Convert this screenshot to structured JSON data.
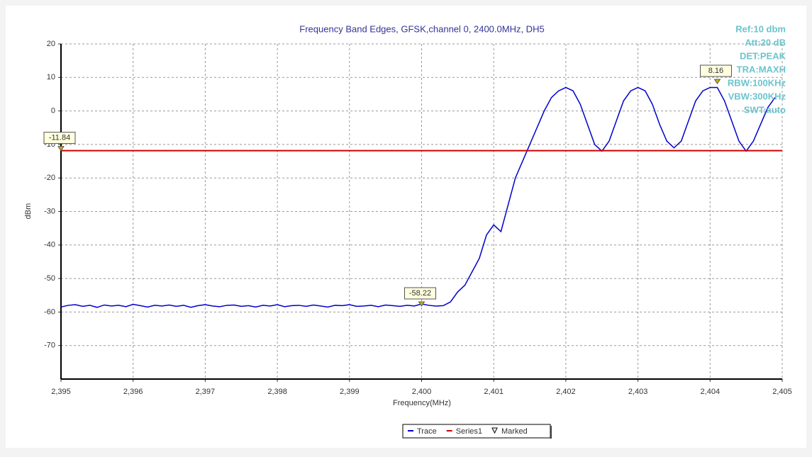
{
  "chart_data": {
    "type": "line",
    "title": "Frequency Band Edges, GFSK,channel 0, 2400.0MHz, DH5",
    "x_label": "Frequency(MHz)",
    "y_label": "dBm",
    "xlim": [
      2395,
      2405
    ],
    "xticks": [
      {
        "value": 2395,
        "label": "2,395"
      },
      {
        "value": 2396,
        "label": "2,396"
      },
      {
        "value": 2397,
        "label": "2,397"
      },
      {
        "value": 2398,
        "label": "2,398"
      },
      {
        "value": 2399,
        "label": "2,399"
      },
      {
        "value": 2400,
        "label": "2,400"
      },
      {
        "value": 2401,
        "label": "2,401"
      },
      {
        "value": 2402,
        "label": "2,402"
      },
      {
        "value": 2403,
        "label": "2,403"
      },
      {
        "value": 2404,
        "label": "2,404"
      },
      {
        "value": 2405,
        "label": "2,405"
      }
    ],
    "ylim": [
      -80,
      20
    ],
    "yticks": [
      20,
      10,
      0,
      -10,
      -20,
      -30,
      -40,
      -50,
      -60,
      -70
    ],
    "grid": true,
    "annotations": [
      "Ref:10 dbm",
      "Att:20 dB",
      "DET:PEAK",
      "TRA:MAXH",
      "RBW:100KHz",
      "VBW:300KHz",
      "SWT:auto"
    ],
    "series": [
      {
        "name": "Trace",
        "color": "#0000cc",
        "x": [
          2395,
          2395.1,
          2395.2,
          2395.3,
          2395.4,
          2395.5,
          2395.6,
          2395.7,
          2395.8,
          2395.9,
          2396,
          2396.1,
          2396.2,
          2396.3,
          2396.4,
          2396.5,
          2396.6,
          2396.7,
          2396.8,
          2396.9,
          2397,
          2397.1,
          2397.2,
          2397.3,
          2397.4,
          2397.5,
          2397.6,
          2397.7,
          2397.8,
          2397.9,
          2398,
          2398.1,
          2398.2,
          2398.3,
          2398.4,
          2398.5,
          2398.6,
          2398.7,
          2398.8,
          2398.9,
          2399,
          2399.1,
          2399.2,
          2399.3,
          2399.4,
          2399.5,
          2399.6,
          2399.7,
          2399.8,
          2399.9,
          2400,
          2400.1,
          2400.2,
          2400.3,
          2400.4,
          2400.5,
          2400.6,
          2400.7,
          2400.8,
          2400.9,
          2401,
          2401.1,
          2401.2,
          2401.3,
          2401.4,
          2401.5,
          2401.6,
          2401.7,
          2401.8,
          2401.9,
          2402,
          2402.1,
          2402.2,
          2402.3,
          2402.4,
          2402.5,
          2402.6,
          2402.7,
          2402.8,
          2402.9,
          2403,
          2403.1,
          2403.2,
          2403.3,
          2403.4,
          2403.5,
          2403.6,
          2403.7,
          2403.8,
          2403.9,
          2404,
          2404.1,
          2404.2,
          2404.3,
          2404.4,
          2404.5,
          2404.6,
          2404.7,
          2404.8,
          2404.9
        ],
        "values": [
          -58.5,
          -58,
          -57.8,
          -58.3,
          -58,
          -58.6,
          -57.9,
          -58.2,
          -58,
          -58.4,
          -57.7,
          -58.1,
          -58.5,
          -58,
          -58.2,
          -57.9,
          -58.3,
          -58,
          -58.6,
          -58.1,
          -57.8,
          -58.2,
          -58.4,
          -58,
          -57.9,
          -58.3,
          -58.1,
          -58.5,
          -58,
          -58.2,
          -57.8,
          -58.4,
          -58.1,
          -58,
          -58.3,
          -57.9,
          -58.2,
          -58.5,
          -58,
          -58.1,
          -57.8,
          -58.3,
          -58.2,
          -58,
          -58.4,
          -57.9,
          -58.1,
          -58.3,
          -58,
          -58.2,
          -57.6,
          -58,
          -58.22,
          -58.1,
          -57,
          -54,
          -52,
          -48,
          -44,
          -37,
          -34,
          -36,
          -28,
          -20,
          -15,
          -10,
          -5,
          0,
          4,
          6,
          7,
          6,
          2,
          -4,
          -10,
          -12,
          -9,
          -3,
          3,
          6,
          7,
          6,
          2,
          -4,
          -9,
          -11,
          -9,
          -3,
          3,
          6,
          7,
          7,
          3,
          -3,
          -9,
          -12,
          -9,
          -4,
          1,
          4
        ]
      },
      {
        "name": "Series1",
        "color": "#cc0000",
        "x": [
          2395,
          2405
        ],
        "values": [
          -11.84,
          -11.84
        ]
      },
      {
        "name": "Marked",
        "color": "#c8b400",
        "x": [
          2395,
          2400,
          2404.1
        ],
        "values": [
          -11.84,
          -58.22,
          8.16
        ]
      }
    ]
  }
}
